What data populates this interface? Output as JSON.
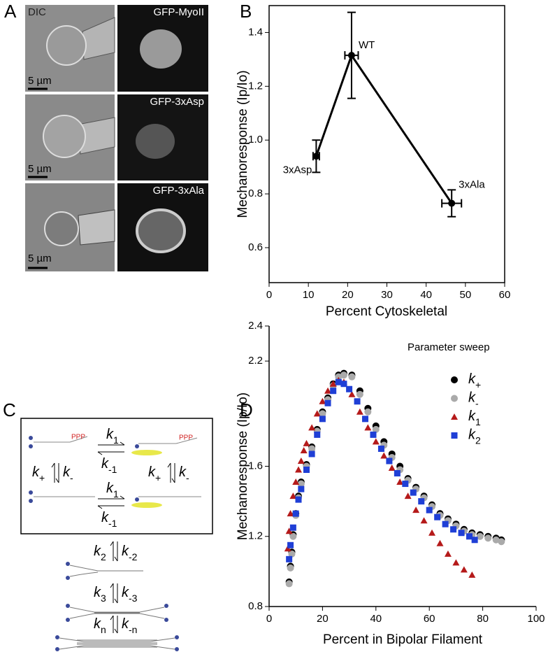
{
  "panel_labels": [
    "A",
    "B",
    "C",
    "D"
  ],
  "images": {
    "column_labels": [
      "DIC",
      "GFP-MyoII"
    ],
    "row_labels": [
      "GFP-3xAsp",
      "GFP-3xAla"
    ],
    "scale_bars": [
      "5 µm",
      "5 µm",
      "5 µm"
    ]
  },
  "diagram": {
    "box_labels": [
      "k1",
      "k-1",
      "k+",
      "k-",
      "k+",
      "k-",
      "k1",
      "k-1"
    ],
    "phospho": [
      "PPP",
      "PPP"
    ],
    "steps": [
      [
        "k2",
        "k-2"
      ],
      [
        "k3",
        "k-3"
      ],
      [
        "kn",
        "k-n"
      ]
    ]
  },
  "chart_data": [
    {
      "type": "scatter",
      "x_label": "Percent Cytoskeletal",
      "y_label": "Mechanoresponse (Ip/Io)",
      "x": [
        12,
        21,
        46.5
      ],
      "values": [
        0.94,
        1.315,
        0.765
      ],
      "xerr": [
        0.8,
        1.7,
        2.5
      ],
      "yerr": [
        0.06,
        0.16,
        0.05
      ],
      "point_labels": [
        "3xAsp",
        "WT",
        "3xAla"
      ],
      "color": "#000000",
      "line": true,
      "frame": true,
      "xlim": [
        0,
        60
      ],
      "xticks": [
        0,
        10,
        20,
        30,
        40,
        50,
        60
      ],
      "ylim": [
        0.47,
        1.5
      ],
      "yticks": [
        0.6,
        0.8,
        {
          "value": 1,
          "label": "1.0"
        },
        1.2,
        1.4
      ]
    },
    {
      "type": "scatter",
      "x_label": "Percent in Bipolar Filament",
      "y_label": "Mechanoresponse (Ip/Io)",
      "legend_title": "Parameter sweep",
      "legend": "upper right",
      "frame": false,
      "xlim": [
        0,
        100
      ],
      "xticks": [
        0,
        20,
        40,
        60,
        80,
        100
      ],
      "ylim": [
        0.8,
        2.4
      ],
      "yticks": [
        0.8,
        1.2,
        1.6,
        2.2,
        2.4
      ],
      "series": [
        {
          "name": "k+",
          "color": "#000000",
          "marker": "circle",
          "x": [
            7.5,
            8,
            8.5,
            9,
            10,
            11,
            12,
            14,
            16,
            18,
            20,
            22,
            24,
            26,
            28,
            31,
            34,
            37,
            40,
            43,
            46,
            49,
            52,
            55,
            58,
            61,
            64,
            67,
            70,
            73,
            76,
            79,
            82,
            85,
            87
          ],
          "values": [
            0.94,
            1.03,
            1.11,
            1.21,
            1.33,
            1.43,
            1.51,
            1.61,
            1.71,
            1.81,
            1.91,
            1.99,
            2.07,
            2.12,
            2.13,
            2.12,
            2.03,
            1.93,
            1.83,
            1.74,
            1.67,
            1.6,
            1.53,
            1.48,
            1.43,
            1.38,
            1.33,
            1.3,
            1.27,
            1.24,
            1.22,
            1.21,
            1.2,
            1.19,
            1.18
          ]
        },
        {
          "name": "k-",
          "color": "#aaaaaa",
          "marker": "circle",
          "x": [
            7.5,
            8,
            8.5,
            9,
            10,
            11,
            12,
            14,
            16,
            18,
            20,
            22,
            24,
            26,
            28,
            31,
            34,
            37,
            40,
            43,
            46,
            49,
            52,
            55,
            58,
            61,
            64,
            67,
            70,
            73,
            76,
            79,
            82,
            85,
            87
          ],
          "values": [
            0.93,
            1.02,
            1.1,
            1.2,
            1.32,
            1.42,
            1.5,
            1.6,
            1.7,
            1.8,
            1.9,
            1.98,
            2.06,
            2.11,
            2.12,
            2.11,
            2.01,
            1.91,
            1.81,
            1.72,
            1.65,
            1.58,
            1.52,
            1.47,
            1.42,
            1.37,
            1.32,
            1.29,
            1.26,
            1.23,
            1.21,
            1.2,
            1.19,
            1.18,
            1.17
          ]
        },
        {
          "name": "k1",
          "color": "#b51a1a",
          "marker": "triangle",
          "x": [
            7,
            7.5,
            8,
            9,
            10,
            11,
            12,
            13,
            14,
            16,
            18,
            20,
            22,
            24,
            26,
            28,
            31,
            34,
            37,
            40,
            43,
            46,
            49,
            52,
            55,
            58,
            61,
            64,
            67,
            70,
            73,
            76
          ],
          "values": [
            1.13,
            1.23,
            1.33,
            1.43,
            1.51,
            1.58,
            1.63,
            1.69,
            1.73,
            1.82,
            1.9,
            1.97,
            2.03,
            2.07,
            2.09,
            2.08,
            2.01,
            1.91,
            1.82,
            1.74,
            1.66,
            1.59,
            1.51,
            1.43,
            1.35,
            1.29,
            1.22,
            1.16,
            1.1,
            1.05,
            1.01,
            0.98
          ]
        },
        {
          "name": "k2",
          "color": "#1f3fd6",
          "marker": "square",
          "x": [
            7.5,
            8,
            9,
            10,
            11,
            12,
            14,
            16,
            18,
            20,
            22,
            24,
            26,
            28,
            30,
            33,
            36,
            39,
            42,
            45,
            48,
            51,
            54,
            57,
            60,
            63,
            66,
            69,
            72,
            75,
            77
          ],
          "values": [
            1.07,
            1.15,
            1.25,
            1.33,
            1.41,
            1.47,
            1.58,
            1.67,
            1.78,
            1.87,
            1.96,
            2.03,
            2.08,
            2.07,
            2.04,
            1.97,
            1.87,
            1.78,
            1.7,
            1.63,
            1.56,
            1.5,
            1.45,
            1.4,
            1.35,
            1.31,
            1.27,
            1.24,
            1.22,
            1.2,
            1.18
          ]
        }
      ]
    }
  ]
}
